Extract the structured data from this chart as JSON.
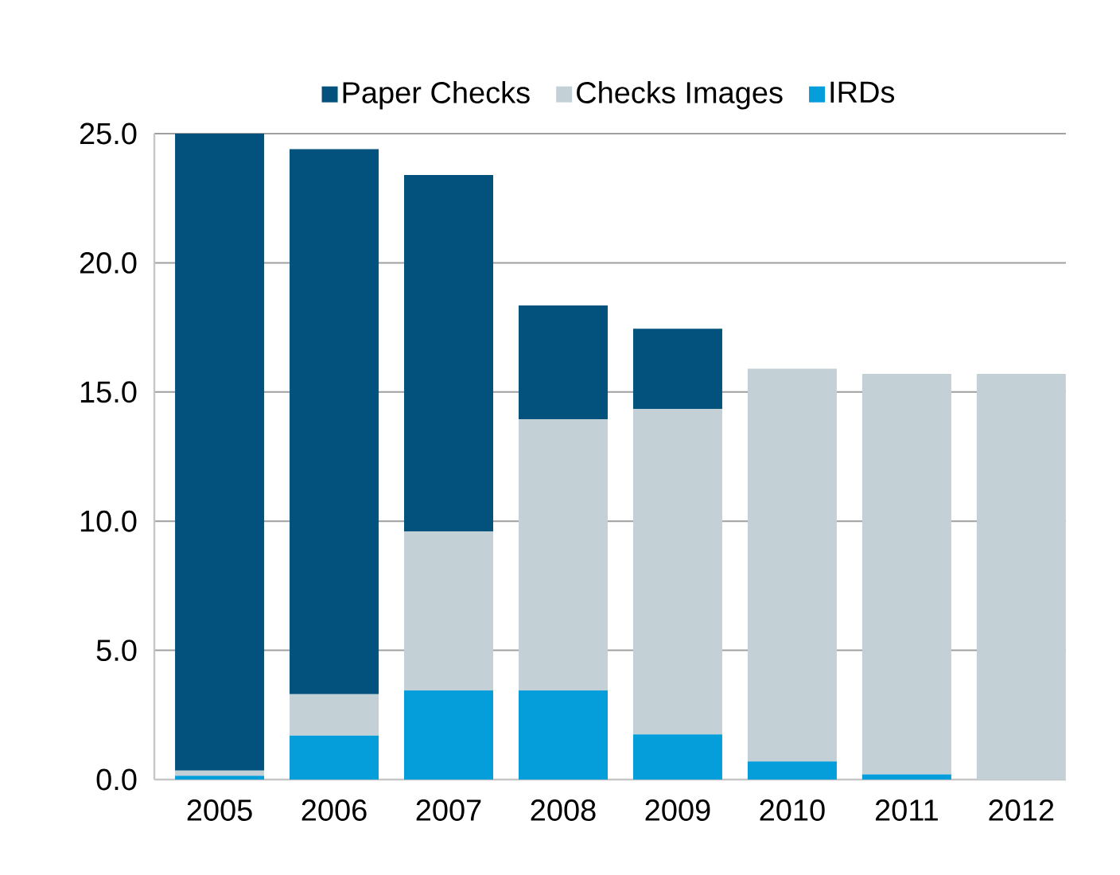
{
  "chart_data": {
    "type": "bar",
    "stacked": true,
    "categories": [
      "2005",
      "2006",
      "2007",
      "2008",
      "2009",
      "2010",
      "2011",
      "2012"
    ],
    "series": [
      {
        "name": "IRDs",
        "color": "#069ddb",
        "values": [
          0.15,
          1.7,
          3.45,
          3.45,
          1.75,
          0.7,
          0.2,
          0
        ]
      },
      {
        "name": "Checks Images",
        "color": "#c3d1d7",
        "values": [
          0.2,
          1.6,
          6.15,
          10.5,
          12.6,
          15.2,
          15.5,
          15.7
        ]
      },
      {
        "name": "Paper Checks",
        "color": "#02527d",
        "values": [
          24.65,
          21.1,
          13.8,
          4.4,
          3.1,
          0,
          0,
          0
        ]
      }
    ],
    "ylim": [
      0,
      25
    ],
    "yticks": [
      {
        "value": 0,
        "label": "0.0"
      },
      {
        "value": 5,
        "label": "5.0"
      },
      {
        "value": 10,
        "label": "10.0"
      },
      {
        "value": 15,
        "label": "15.0"
      },
      {
        "value": 20,
        "label": "20.0"
      },
      {
        "value": 25,
        "label": "25.0"
      }
    ],
    "grid": "y",
    "legend": "top"
  }
}
